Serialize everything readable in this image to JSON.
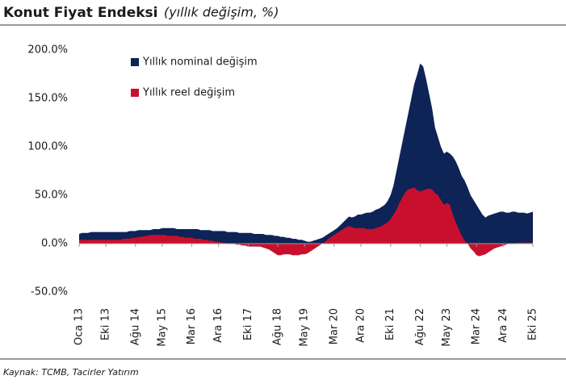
{
  "chart_data": {
    "type": "area",
    "title": "Konut Fiyat Endeksi",
    "subtitle": "(yıllık değişim, %)",
    "source": "Kaynak: TCMB, Tacirler Yatırım",
    "legend": "upper left",
    "categories": [
      "Oca 13",
      null,
      null,
      null,
      null,
      null,
      null,
      null,
      null,
      "Eki 13",
      null,
      null,
      null,
      null,
      null,
      null,
      null,
      null,
      null,
      "Ağu 14",
      null,
      null,
      null,
      null,
      null,
      null,
      null,
      null,
      "May 15",
      null,
      null,
      null,
      null,
      null,
      null,
      null,
      null,
      null,
      "Mar 16",
      null,
      null,
      null,
      null,
      null,
      null,
      null,
      null,
      "Ara 16",
      null,
      null,
      null,
      null,
      null,
      null,
      null,
      null,
      null,
      "Eki 17",
      null,
      null,
      null,
      null,
      null,
      null,
      null,
      null,
      null,
      "Ağu 18",
      null,
      null,
      null,
      null,
      null,
      null,
      null,
      null,
      "May 19",
      null,
      null,
      null,
      null,
      null,
      null,
      null,
      null,
      null,
      "Mar 20",
      null,
      null,
      null,
      null,
      null,
      null,
      null,
      null,
      "Ara 20",
      null,
      null,
      null,
      null,
      null,
      null,
      null,
      null,
      null,
      "Eki 21",
      null,
      null,
      null,
      null,
      null,
      null,
      null,
      null,
      null,
      "Ağu 22",
      null,
      null,
      null,
      null,
      null,
      null,
      null,
      null,
      "May 23",
      null,
      null,
      null,
      null,
      null,
      null,
      null,
      null,
      null,
      "Mar 24",
      null,
      null,
      null,
      null,
      null,
      null,
      null,
      null,
      "Ara 24",
      null,
      null,
      null,
      null,
      null,
      null,
      null,
      null,
      null,
      "Eki 25"
    ],
    "series": [
      {
        "name": "Yıllık nominal değişim",
        "color": "#0e2356",
        "values": [
          10,
          11,
          11,
          11,
          12,
          12,
          12,
          12,
          12,
          12,
          12,
          12,
          12,
          12,
          12,
          12,
          12,
          13,
          13,
          13,
          14,
          14,
          14,
          14,
          14,
          15,
          15,
          15,
          16,
          16,
          16,
          16,
          16,
          15,
          15,
          15,
          15,
          15,
          15,
          15,
          15,
          14,
          14,
          14,
          14,
          13,
          13,
          13,
          13,
          13,
          12,
          12,
          12,
          12,
          11,
          11,
          11,
          11,
          11,
          10,
          10,
          10,
          10,
          9,
          9,
          9,
          8,
          8,
          7,
          7,
          6,
          6,
          5,
          5,
          4,
          4,
          3,
          2,
          2,
          3,
          4,
          5,
          6,
          8,
          10,
          12,
          14,
          16,
          19,
          22,
          25,
          28,
          27,
          28,
          30,
          30,
          31,
          32,
          32,
          33,
          35,
          36,
          38,
          40,
          44,
          50,
          60,
          75,
          90,
          105,
          120,
          135,
          150,
          165,
          175,
          186,
          183,
          170,
          155,
          140,
          120,
          110,
          100,
          93,
          95,
          93,
          90,
          85,
          78,
          70,
          65,
          58,
          50,
          45,
          40,
          35,
          30,
          27,
          29,
          30,
          31,
          32,
          33,
          33,
          32,
          32,
          33,
          33,
          32,
          32,
          32,
          31,
          32,
          33
        ]
      },
      {
        "name": "Yıllık reel değişim",
        "color": "#c8102e",
        "values": [
          4,
          4,
          4,
          4,
          4,
          4,
          4,
          4,
          4,
          4,
          4,
          4,
          4,
          4,
          4,
          5,
          5,
          5,
          6,
          6,
          7,
          7,
          8,
          8,
          9,
          9,
          9,
          9,
          9,
          9,
          8,
          8,
          8,
          8,
          7,
          7,
          6,
          6,
          6,
          5,
          5,
          5,
          4,
          4,
          3,
          3,
          2,
          2,
          1,
          1,
          0,
          0,
          0,
          -1,
          -1,
          -2,
          -2,
          -3,
          -3,
          -3,
          -3,
          -3,
          -4,
          -5,
          -6,
          -8,
          -10,
          -12,
          -12,
          -11,
          -11,
          -11,
          -12,
          -12,
          -12,
          -11,
          -11,
          -10,
          -8,
          -6,
          -4,
          -2,
          0,
          2,
          5,
          7,
          9,
          11,
          13,
          15,
          17,
          18,
          17,
          16,
          16,
          16,
          16,
          15,
          15,
          15,
          16,
          17,
          18,
          20,
          22,
          25,
          30,
          35,
          42,
          48,
          53,
          56,
          57,
          58,
          55,
          54,
          55,
          56,
          57,
          56,
          52,
          50,
          45,
          40,
          42,
          40,
          30,
          22,
          15,
          8,
          3,
          0,
          -5,
          -8,
          -12,
          -13,
          -12,
          -11,
          -9,
          -7,
          -5,
          -4,
          -3,
          -2,
          -1,
          0,
          0,
          0,
          1,
          1,
          1,
          1,
          1,
          1
        ]
      }
    ],
    "ylim": [
      -50,
      200
    ],
    "yticks": [
      {
        "value": -50,
        "label": "-50.0%"
      },
      {
        "value": 0,
        "label": "0.0%"
      },
      {
        "value": 50,
        "label": "50.0%"
      },
      {
        "value": 100,
        "label": "100.0%"
      },
      {
        "value": 150,
        "label": "150.0%"
      },
      {
        "value": 200,
        "label": "200.0%"
      }
    ]
  }
}
